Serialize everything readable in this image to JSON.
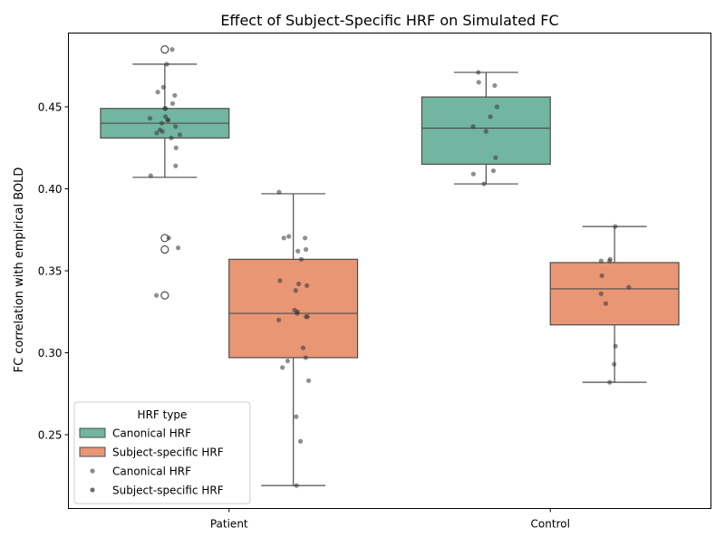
{
  "chart_data": {
    "type": "box",
    "title": "Effect of Subject-Specific HRF on Simulated FC",
    "xlabel": "",
    "ylabel": "FC correlation with empirical BOLD",
    "ylim": [
      0.205,
      0.495
    ],
    "yticks": [
      0.25,
      0.3,
      0.35,
      0.4,
      0.45
    ],
    "ytick_labels": [
      "0.25",
      "0.30",
      "0.35",
      "0.40",
      "0.45"
    ],
    "categories": [
      "Patient",
      "Control"
    ],
    "legend": {
      "title": "HRF type",
      "position": "lower-left",
      "entries": [
        {
          "label": "Canonical HRF",
          "kind": "box",
          "color": "#72b6a1"
        },
        {
          "label": "Subject-specific HRF",
          "kind": "box",
          "color": "#e99675"
        },
        {
          "label": "Canonical HRF",
          "kind": "point",
          "color": "#8a8a8a"
        },
        {
          "label": "Subject-specific HRF",
          "kind": "point",
          "color": "#6e6e6e"
        }
      ]
    },
    "series": [
      {
        "name": "Canonical HRF",
        "color": "#72b6a1",
        "boxes": [
          {
            "category": "Patient",
            "whisker_low": 0.407,
            "q1": 0.431,
            "median": 0.44,
            "q3": 0.449,
            "whisker_high": 0.476,
            "outliers": [
              0.485,
              0.37,
              0.363,
              0.335
            ]
          },
          {
            "category": "Control",
            "whisker_low": 0.403,
            "q1": 0.415,
            "median": 0.437,
            "q3": 0.456,
            "whisker_high": 0.471,
            "outliers": []
          }
        ],
        "points": [
          {
            "category": "Patient",
            "values": [
              0.485,
              0.476,
              0.462,
              0.459,
              0.457,
              0.452,
              0.449,
              0.449,
              0.444,
              0.443,
              0.442,
              0.442,
              0.44,
              0.438,
              0.436,
              0.435,
              0.434,
              0.433,
              0.431,
              0.425,
              0.414,
              0.408,
              0.37,
              0.364,
              0.335
            ]
          },
          {
            "category": "Control",
            "values": [
              0.471,
              0.465,
              0.463,
              0.45,
              0.444,
              0.438,
              0.435,
              0.419,
              0.411,
              0.409,
              0.403
            ]
          }
        ]
      },
      {
        "name": "Subject-specific HRF",
        "color": "#e99675",
        "boxes": [
          {
            "category": "Patient",
            "whisker_low": 0.219,
            "q1": 0.297,
            "median": 0.324,
            "q3": 0.357,
            "whisker_high": 0.397,
            "outliers": []
          },
          {
            "category": "Control",
            "whisker_low": 0.282,
            "q1": 0.317,
            "median": 0.339,
            "q3": 0.355,
            "whisker_high": 0.377,
            "outliers": []
          }
        ],
        "points": [
          {
            "category": "Patient",
            "values": [
              0.398,
              0.371,
              0.37,
              0.37,
              0.363,
              0.362,
              0.357,
              0.344,
              0.342,
              0.341,
              0.338,
              0.326,
              0.325,
              0.324,
              0.322,
              0.322,
              0.32,
              0.303,
              0.297,
              0.295,
              0.291,
              0.283,
              0.261,
              0.246,
              0.219
            ]
          },
          {
            "category": "Control",
            "values": [
              0.377,
              0.357,
              0.356,
              0.356,
              0.347,
              0.34,
              0.336,
              0.33,
              0.304,
              0.293,
              0.282
            ]
          }
        ]
      }
    ]
  }
}
